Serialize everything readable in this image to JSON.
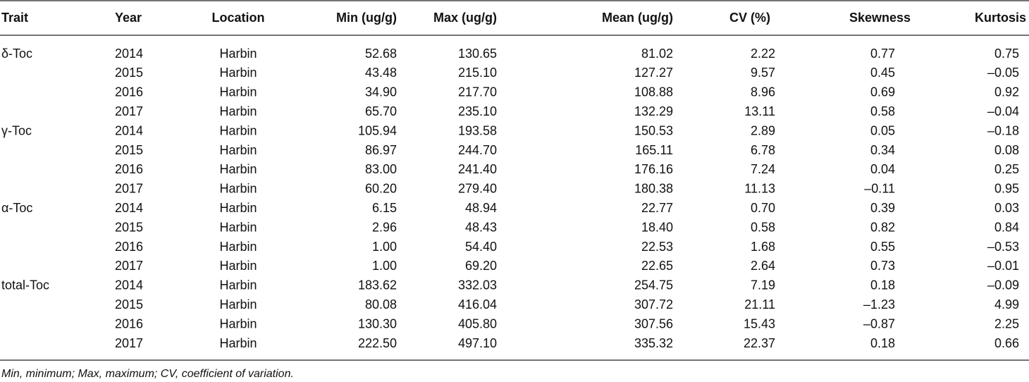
{
  "table": {
    "header": [
      "Trait",
      "Year",
      "Location",
      "Min (ug/g)",
      "Max (ug/g)",
      "Mean (ug/g)",
      "CV (%)",
      "Skewness",
      "Kurtosis"
    ],
    "groups": [
      {
        "trait": "δ-Toc",
        "rows": [
          [
            "2014",
            "Harbin",
            "52.68",
            "130.65",
            "81.02",
            "2.22",
            "0.77",
            "0.75"
          ],
          [
            "2015",
            "Harbin",
            "43.48",
            "215.10",
            "127.27",
            "9.57",
            "0.45",
            "–0.05"
          ],
          [
            "2016",
            "Harbin",
            "34.90",
            "217.70",
            "108.88",
            "8.96",
            "0.69",
            "0.92"
          ],
          [
            "2017",
            "Harbin",
            "65.70",
            "235.10",
            "132.29",
            "13.11",
            "0.58",
            "–0.04"
          ]
        ]
      },
      {
        "trait": "γ-Toc",
        "rows": [
          [
            "2014",
            "Harbin",
            "105.94",
            "193.58",
            "150.53",
            "2.89",
            "0.05",
            "–0.18"
          ],
          [
            "2015",
            "Harbin",
            "86.97",
            "244.70",
            "165.11",
            "6.78",
            "0.34",
            "0.08"
          ],
          [
            "2016",
            "Harbin",
            "83.00",
            "241.40",
            "176.16",
            "7.24",
            "0.04",
            "0.25"
          ],
          [
            "2017",
            "Harbin",
            "60.20",
            "279.40",
            "180.38",
            "11.13",
            "–0.11",
            "0.95"
          ]
        ]
      },
      {
        "trait": "α-Toc",
        "rows": [
          [
            "2014",
            "Harbin",
            "6.15",
            "48.94",
            "22.77",
            "0.70",
            "0.39",
            "0.03"
          ],
          [
            "2015",
            "Harbin",
            "2.96",
            "48.43",
            "18.40",
            "0.58",
            "0.82",
            "0.84"
          ],
          [
            "2016",
            "Harbin",
            "1.00",
            "54.40",
            "22.53",
            "1.68",
            "0.55",
            "–0.53"
          ],
          [
            "2017",
            "Harbin",
            "1.00",
            "69.20",
            "22.65",
            "2.64",
            "0.73",
            "–0.01"
          ]
        ]
      },
      {
        "trait": "total-Toc",
        "rows": [
          [
            "2014",
            "Harbin",
            "183.62",
            "332.03",
            "254.75",
            "7.19",
            "0.18",
            "–0.09"
          ],
          [
            "2015",
            "Harbin",
            "80.08",
            "416.04",
            "307.72",
            "21.11",
            "–1.23",
            "4.99"
          ],
          [
            "2016",
            "Harbin",
            "130.30",
            "405.80",
            "307.56",
            "15.43",
            "–0.87",
            "2.25"
          ],
          [
            "2017",
            "Harbin",
            "222.50",
            "497.10",
            "335.32",
            "22.37",
            "0.18",
            "0.66"
          ]
        ]
      }
    ],
    "footnote": "Min, minimum; Max, maximum; CV, coefficient of variation."
  }
}
